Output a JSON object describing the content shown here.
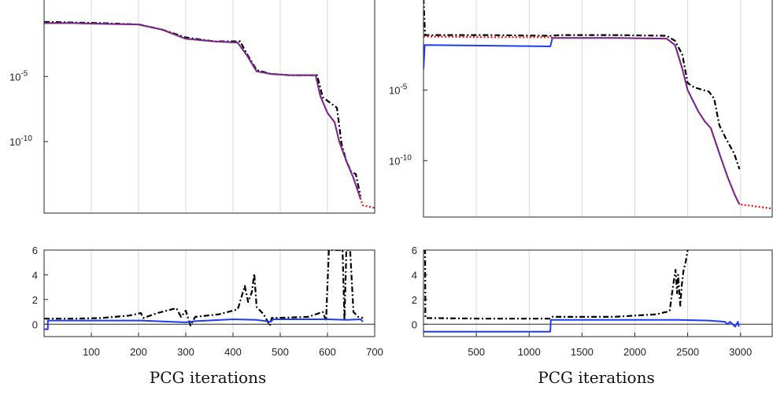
{
  "chart_data": [
    {
      "type": "line",
      "panel": "top-left",
      "yscale": "log",
      "xlim": [
        0,
        700
      ],
      "ylim_log10": [
        -15.5,
        1
      ],
      "yticks": [
        {
          "v": -5,
          "base": "10",
          "exp": "-5"
        },
        {
          "v": -10,
          "base": "10",
          "exp": "-10"
        }
      ],
      "xgrid": [
        100,
        200,
        300,
        400,
        500,
        600,
        700
      ],
      "series": [
        {
          "color": "#000000",
          "style": "dashdot",
          "points": [
            [
              0,
              -0.8
            ],
            [
              60,
              -0.85
            ],
            [
              120,
              -0.9
            ],
            [
              200,
              -1.0
            ],
            [
              250,
              -1.4
            ],
            [
              300,
              -2.0
            ],
            [
              360,
              -2.3
            ],
            [
              415,
              -2.3
            ],
            [
              430,
              -3.3
            ],
            [
              450,
              -4.5
            ],
            [
              480,
              -4.8
            ],
            [
              520,
              -4.9
            ],
            [
              578,
              -4.9
            ],
            [
              590,
              -6.6
            ],
            [
              605,
              -7.0
            ],
            [
              620,
              -7.4
            ],
            [
              630,
              -10.2
            ],
            [
              640,
              -11.5
            ],
            [
              650,
              -12.3
            ],
            [
              660,
              -12.5
            ],
            [
              670,
              -14.2
            ]
          ]
        },
        {
          "color": "#1f3cf0",
          "style": "solid",
          "points": [
            [
              0,
              -0.9
            ],
            [
              60,
              -0.9
            ],
            [
              120,
              -0.95
            ],
            [
              200,
              -1.0
            ],
            [
              250,
              -1.4
            ],
            [
              300,
              -2.1
            ],
            [
              360,
              -2.3
            ],
            [
              410,
              -2.4
            ],
            [
              430,
              -3.4
            ],
            [
              450,
              -4.6
            ],
            [
              480,
              -4.8
            ],
            [
              520,
              -4.9
            ],
            [
              575,
              -4.9
            ],
            [
              585,
              -6.5
            ],
            [
              600,
              -7.8
            ],
            [
              615,
              -8.5
            ],
            [
              625,
              -10.0
            ],
            [
              640,
              -11.5
            ],
            [
              655,
              -12.8
            ],
            [
              670,
              -14.4
            ]
          ]
        },
        {
          "color": "#e81010",
          "style": "dotted",
          "points": [
            [
              0,
              -0.9
            ],
            [
              60,
              -0.9
            ],
            [
              120,
              -0.95
            ],
            [
              200,
              -1.0
            ],
            [
              250,
              -1.4
            ],
            [
              300,
              -2.1
            ],
            [
              360,
              -2.3
            ],
            [
              410,
              -2.4
            ],
            [
              430,
              -3.4
            ],
            [
              450,
              -4.6
            ],
            [
              480,
              -4.8
            ],
            [
              520,
              -4.9
            ],
            [
              575,
              -4.9
            ],
            [
              585,
              -6.5
            ],
            [
              600,
              -7.8
            ],
            [
              615,
              -8.5
            ],
            [
              625,
              -10.0
            ],
            [
              640,
              -11.5
            ],
            [
              655,
              -12.8
            ],
            [
              670,
              -14.4
            ],
            [
              675,
              -14.9
            ],
            [
              700,
              -15.1
            ]
          ]
        }
      ]
    },
    {
      "type": "line",
      "panel": "bottom-left",
      "xlim": [
        0,
        700
      ],
      "ylim": [
        -1,
        6
      ],
      "yticks": [
        "0",
        "2",
        "4",
        "6"
      ],
      "xticks": [
        "100",
        "200",
        "300",
        "400",
        "500",
        "600",
        "700"
      ],
      "xlabel": "PCG iterations",
      "series": [
        {
          "color": "#000000",
          "style": "dashdot",
          "points": [
            [
              0,
              0.45
            ],
            [
              60,
              0.45
            ],
            [
              120,
              0.5
            ],
            [
              180,
              0.7
            ],
            [
              205,
              0.9
            ],
            [
              210,
              0.5
            ],
            [
              240,
              0.9
            ],
            [
              280,
              1.3
            ],
            [
              290,
              0.6
            ],
            [
              300,
              1.1
            ],
            [
              310,
              -0.1
            ],
            [
              320,
              0.6
            ],
            [
              370,
              0.8
            ],
            [
              410,
              1.2
            ],
            [
              425,
              3.1
            ],
            [
              432,
              1.8
            ],
            [
              440,
              2.6
            ],
            [
              445,
              4.1
            ],
            [
              450,
              1.4
            ],
            [
              465,
              0.8
            ],
            [
              478,
              -0.1
            ],
            [
              482,
              0.5
            ],
            [
              560,
              0.6
            ],
            [
              590,
              1.0
            ],
            [
              597,
              0.3
            ],
            [
              603,
              6
            ],
            [
              632,
              6
            ],
            [
              636,
              0.3
            ],
            [
              640,
              6
            ],
            [
              648,
              6
            ],
            [
              655,
              1.0
            ],
            [
              665,
              0.6
            ],
            [
              675,
              0.5
            ]
          ]
        },
        {
          "color": "#1f3cf0",
          "style": "solid",
          "points": [
            [
              0,
              -0.4
            ],
            [
              8,
              -0.4
            ],
            [
              8,
              0.3
            ],
            [
              200,
              0.3
            ],
            [
              205,
              0.3
            ],
            [
              300,
              0.15
            ],
            [
              320,
              0.25
            ],
            [
              400,
              0.4
            ],
            [
              450,
              0.35
            ],
            [
              480,
              0.2
            ],
            [
              485,
              0.4
            ],
            [
              560,
              0.4
            ],
            [
              600,
              0.4
            ],
            [
              640,
              0.35
            ],
            [
              670,
              0.4
            ],
            [
              675,
              0.2
            ]
          ]
        }
      ]
    },
    {
      "type": "line",
      "panel": "top-right",
      "yscale": "log",
      "xlim": [
        0,
        3300
      ],
      "ylim_log10": [
        -14,
        1.5
      ],
      "yticks": [
        {
          "v": -5,
          "base": "10",
          "exp": "-5"
        },
        {
          "v": -10,
          "base": "10",
          "exp": "-10"
        }
      ],
      "xgrid": [
        500,
        1000,
        1500,
        2000,
        2500,
        3000
      ],
      "series": [
        {
          "color": "#000000",
          "style": "dashdot",
          "points": [
            [
              0,
              1.5
            ],
            [
              15,
              -1.1
            ],
            [
              600,
              -1.1
            ],
            [
              1200,
              -1.15
            ],
            [
              1300,
              -1.1
            ],
            [
              1800,
              -1.1
            ],
            [
              2300,
              -1.15
            ],
            [
              2380,
              -1.5
            ],
            [
              2450,
              -2.5
            ],
            [
              2500,
              -4.5
            ],
            [
              2560,
              -4.8
            ],
            [
              2650,
              -5.0
            ],
            [
              2700,
              -5.1
            ],
            [
              2750,
              -5.6
            ],
            [
              2800,
              -7.5
            ],
            [
              2860,
              -8.4
            ],
            [
              2940,
              -9.5
            ],
            [
              2990,
              -10.6
            ]
          ]
        },
        {
          "color": "#1f3cf0",
          "style": "solid",
          "points": [
            [
              0,
              -3.5
            ],
            [
              12,
              -1.8
            ],
            [
              1200,
              -1.9
            ],
            [
              1220,
              -1.3
            ],
            [
              1800,
              -1.3
            ],
            [
              2300,
              -1.35
            ],
            [
              2380,
              -1.8
            ],
            [
              2450,
              -3.5
            ],
            [
              2500,
              -5.0
            ],
            [
              2600,
              -6.5
            ],
            [
              2660,
              -7.2
            ],
            [
              2720,
              -7.7
            ],
            [
              2800,
              -9.5
            ],
            [
              2880,
              -11.2
            ],
            [
              2950,
              -12.5
            ],
            [
              2990,
              -13.1
            ]
          ]
        },
        {
          "color": "#e81010",
          "style": "dotted",
          "points": [
            [
              0,
              -1.2
            ],
            [
              600,
              -1.25
            ],
            [
              1200,
              -1.25
            ],
            [
              1220,
              -1.3
            ],
            [
              1800,
              -1.3
            ],
            [
              2300,
              -1.35
            ],
            [
              2380,
              -1.8
            ],
            [
              2450,
              -3.5
            ],
            [
              2500,
              -5.0
            ],
            [
              2600,
              -6.5
            ],
            [
              2660,
              -7.2
            ],
            [
              2720,
              -7.7
            ],
            [
              2800,
              -9.5
            ],
            [
              2880,
              -11.2
            ],
            [
              2950,
              -12.5
            ],
            [
              2990,
              -13.1
            ],
            [
              3100,
              -13.2
            ],
            [
              3300,
              -13.4
            ]
          ]
        }
      ]
    },
    {
      "type": "line",
      "panel": "bottom-right",
      "xlim": [
        0,
        3300
      ],
      "ylim": [
        -1,
        6
      ],
      "yticks": [
        "0",
        "2",
        "4",
        "6"
      ],
      "xticks": [
        "500",
        "1000",
        "1500",
        "2000",
        "2500",
        "3000"
      ],
      "xlabel": "PCG iterations",
      "series": [
        {
          "color": "#000000",
          "style": "dashdot",
          "points": [
            [
              0,
              6
            ],
            [
              15,
              6
            ],
            [
              18,
              0.5
            ],
            [
              600,
              0.45
            ],
            [
              1200,
              0.45
            ],
            [
              1220,
              0.6
            ],
            [
              1800,
              0.6
            ],
            [
              2200,
              0.8
            ],
            [
              2300,
              1.0
            ],
            [
              2330,
              1.1
            ],
            [
              2360,
              3.0
            ],
            [
              2385,
              4.4
            ],
            [
              2400,
              2.5
            ],
            [
              2410,
              4.0
            ],
            [
              2430,
              1.5
            ],
            [
              2445,
              3.2
            ],
            [
              2460,
              4.3
            ],
            [
              2480,
              5.0
            ],
            [
              2500,
              6
            ]
          ]
        },
        {
          "color": "#1f3cf0",
          "style": "solid",
          "points": [
            [
              0,
              -0.6
            ],
            [
              1200,
              -0.6
            ],
            [
              1205,
              0.35
            ],
            [
              1800,
              0.35
            ],
            [
              2400,
              0.35
            ],
            [
              2700,
              0.3
            ],
            [
              2850,
              0.2
            ],
            [
              2880,
              0.0
            ],
            [
              2900,
              0.2
            ],
            [
              2950,
              -0.2
            ],
            [
              2975,
              0.2
            ],
            [
              2985,
              -0.2
            ]
          ]
        }
      ]
    }
  ]
}
